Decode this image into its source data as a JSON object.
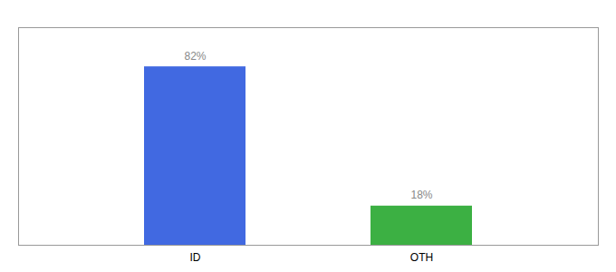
{
  "chart_data": {
    "type": "bar",
    "categories": [
      "ID",
      "OTH"
    ],
    "values": [
      82,
      18
    ],
    "colors": [
      "#4169e1",
      "#3cb043"
    ],
    "value_labels": [
      "82%",
      "18%"
    ],
    "data_labels": true,
    "ylim": [
      0,
      100
    ],
    "tick_labels": "x"
  }
}
